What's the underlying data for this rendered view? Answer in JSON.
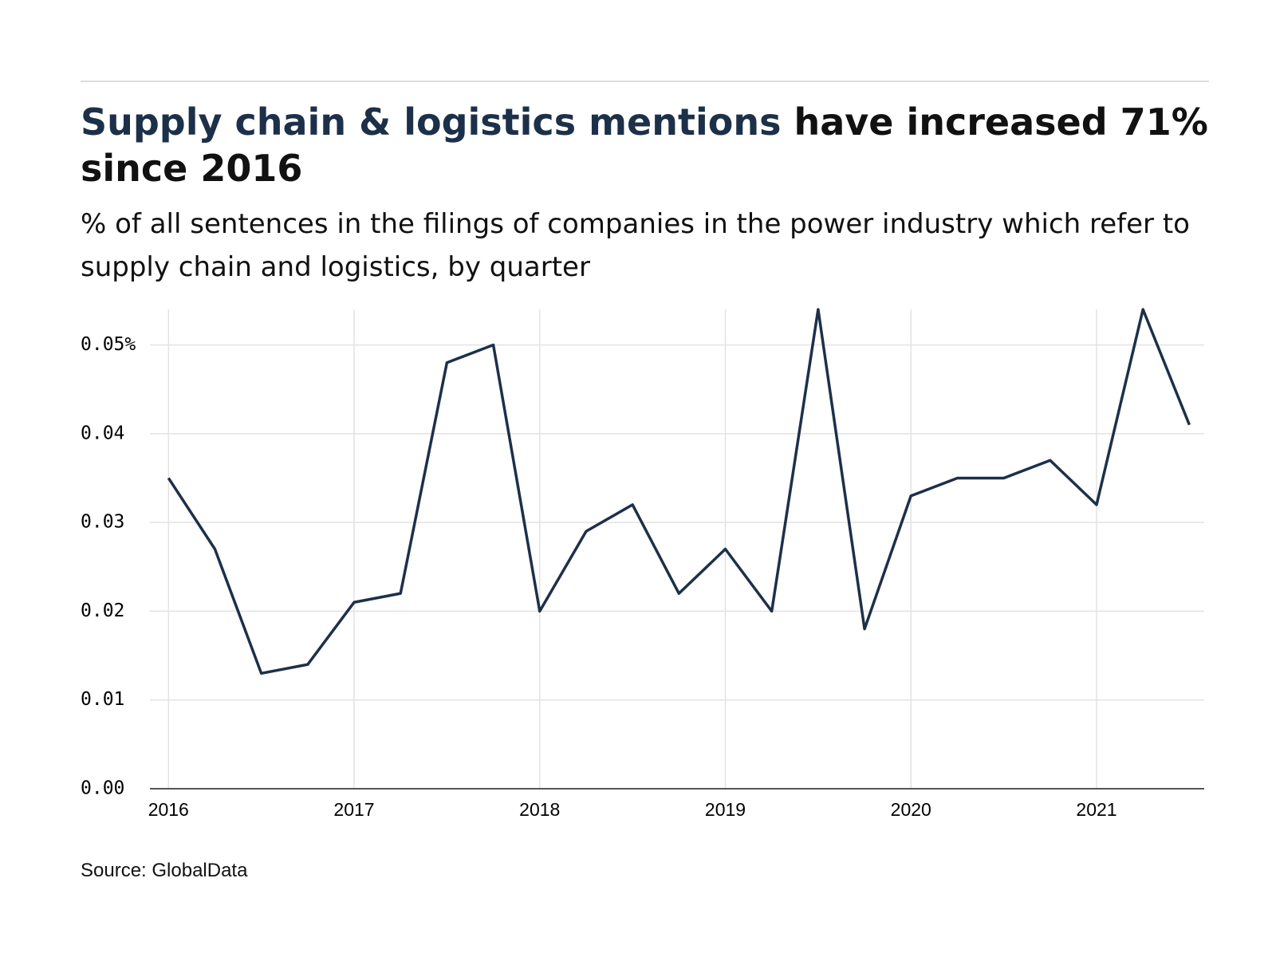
{
  "chart_data": {
    "type": "line",
    "title_highlight": "Supply chain & logistics mentions",
    "title_rest": "have increased 71% since 2016",
    "subtitle": "% of all sentences in the filings of companies in the power industry which refer to supply chain and logistics, by quarter",
    "source": "Source: GlobalData",
    "x": [
      2016,
      2016.25,
      2016.5,
      2016.75,
      2017,
      2017.25,
      2017.5,
      2017.75,
      2018,
      2018.25,
      2018.5,
      2018.75,
      2019,
      2019.25,
      2019.5,
      2019.75,
      2020,
      2020.25,
      2020.5,
      2020.75,
      2021,
      2021.25,
      2021.5
    ],
    "series": [
      {
        "color": "#1d3049",
        "values": [
          0.035,
          0.027,
          0.013,
          0.014,
          0.021,
          0.022,
          0.048,
          0.05,
          0.02,
          0.029,
          0.032,
          0.022,
          0.027,
          0.02,
          0.054,
          0.018,
          0.033,
          0.035,
          0.035,
          0.037,
          0.032,
          0.054,
          0.041
        ]
      }
    ],
    "xlim": [
      2015.9,
      2021.58
    ],
    "xticks": [
      2016,
      2017,
      2018,
      2019,
      2020,
      2021
    ],
    "ylim": [
      0,
      0.054
    ],
    "yticks": [
      {
        "value": 0,
        "label": "0.00"
      },
      0.01,
      0.02,
      0.03,
      0.04,
      {
        "value": 0.05,
        "label": "0.05%"
      }
    ],
    "grid": true,
    "title_highlight_color": "#1d3049"
  }
}
